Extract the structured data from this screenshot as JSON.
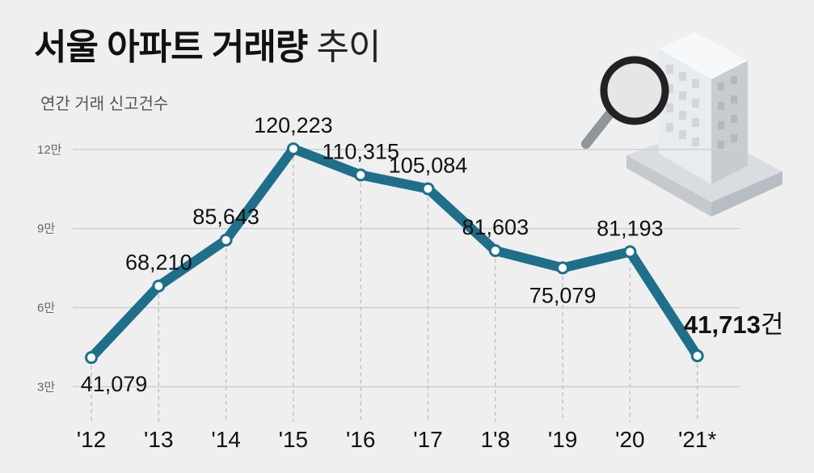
{
  "header": {
    "title_bold": "서울 아파트 거래량",
    "title_light": "추이",
    "subtitle": "연간 거래 신고건수"
  },
  "chart_data": {
    "type": "line",
    "title": "서울 아파트 거래량 추이",
    "ylabel": "연간 거래 신고건수",
    "categories": [
      "'12",
      "'13",
      "'14",
      "'15",
      "'16",
      "'17",
      "1'8",
      "'19",
      "'20",
      "'21*"
    ],
    "values": [
      41079,
      68210,
      85643,
      120223,
      110315,
      105084,
      81603,
      75079,
      81193,
      41713
    ],
    "data_labels": [
      "41,079",
      "68,210",
      "85,643",
      "120,223",
      "110,315",
      "105,084",
      "81,603",
      "75,079",
      "81,193",
      "41,713"
    ],
    "last_label_suffix": "건",
    "yticks": [
      30000,
      60000,
      90000,
      120000
    ],
    "ytick_labels": [
      "3만",
      "6만",
      "9만",
      "12만"
    ],
    "ylim": [
      25000,
      125000
    ],
    "grid": true,
    "colors": {
      "line": "#1f6f8b",
      "grid": "#cfcfcf",
      "marker_fill": "#ffffff"
    }
  }
}
